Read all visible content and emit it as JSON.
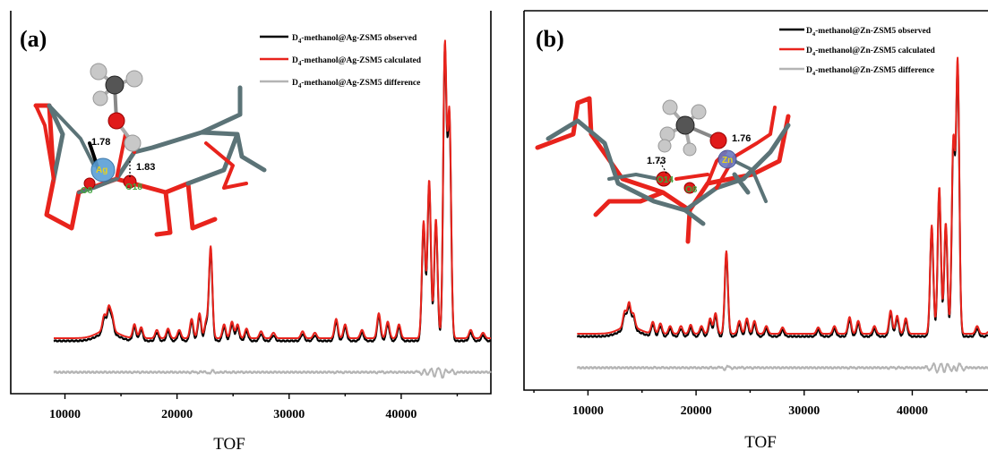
{
  "chart_data": [
    {
      "type": "line",
      "panel_label": "(a)",
      "xlabel": "TOF",
      "xlim": [
        9000,
        48000
      ],
      "xticks": [
        10000,
        20000,
        30000,
        40000
      ],
      "legend_position": "top-right",
      "series": [
        {
          "name": "D4-methanol@Ag-ZSM5 observed",
          "legend_prefix": "D",
          "legend_sub": "4",
          "legend_suffix": "-methanol@Ag-ZSM5 observed",
          "color": "#000000"
        },
        {
          "name": "D4-methanol@Ag-ZSM5 calculated",
          "legend_prefix": "D",
          "legend_sub": "4",
          "legend_suffix": "-methanol@Ag-ZSM5 calculated",
          "color": "#e8231c"
        },
        {
          "name": "D4-methanol@Ag-ZSM5 difference",
          "legend_prefix": "D",
          "legend_sub": "4",
          "legend_suffix": "-methanol@Ag-ZSM5 difference",
          "color": "#b4b4b4"
        }
      ],
      "baseline": 0.1,
      "peaks": [
        {
          "x": 13500,
          "y": 0.055
        },
        {
          "x": 13900,
          "y": 0.08
        },
        {
          "x": 14200,
          "y": 0.05
        },
        {
          "x": 16200,
          "y": 0.05
        },
        {
          "x": 16800,
          "y": 0.04
        },
        {
          "x": 18200,
          "y": 0.03
        },
        {
          "x": 19200,
          "y": 0.035
        },
        {
          "x": 20200,
          "y": 0.03
        },
        {
          "x": 21300,
          "y": 0.07
        },
        {
          "x": 22000,
          "y": 0.09
        },
        {
          "x": 22600,
          "y": 0.06
        },
        {
          "x": 23000,
          "y": 0.33
        },
        {
          "x": 24200,
          "y": 0.05
        },
        {
          "x": 24900,
          "y": 0.06
        },
        {
          "x": 25400,
          "y": 0.05
        },
        {
          "x": 26200,
          "y": 0.035
        },
        {
          "x": 27500,
          "y": 0.025
        },
        {
          "x": 28600,
          "y": 0.02
        },
        {
          "x": 31200,
          "y": 0.025
        },
        {
          "x": 32300,
          "y": 0.02
        },
        {
          "x": 34200,
          "y": 0.07
        },
        {
          "x": 35000,
          "y": 0.05
        },
        {
          "x": 36500,
          "y": 0.03
        },
        {
          "x": 38000,
          "y": 0.09
        },
        {
          "x": 38800,
          "y": 0.06
        },
        {
          "x": 39800,
          "y": 0.05
        },
        {
          "x": 42000,
          "y": 0.42
        },
        {
          "x": 42500,
          "y": 0.57
        },
        {
          "x": 43100,
          "y": 0.43
        },
        {
          "x": 43900,
          "y": 1.05
        },
        {
          "x": 44300,
          "y": 0.8
        },
        {
          "x": 46200,
          "y": 0.03
        },
        {
          "x": 47300,
          "y": 0.02
        }
      ],
      "molecule_labels": {
        "bond1": "1.78",
        "bond2": "1.83",
        "metal": "Ag",
        "site1": "O8",
        "site2": "O18"
      }
    },
    {
      "type": "line",
      "panel_label": "(b)",
      "xlabel": "TOF",
      "xlim": [
        4000,
        48000
      ],
      "xticks": [
        10000,
        20000,
        30000,
        40000
      ],
      "legend_position": "top-right",
      "series": [
        {
          "name": "D4-methanol@Zn-ZSM5 observed",
          "legend_prefix": "D",
          "legend_sub": "4",
          "legend_suffix": "-methanol@Zn-ZSM5 observed",
          "color": "#000000"
        },
        {
          "name": "D4-methanol@Zn-ZSM5 calculated",
          "legend_prefix": "D",
          "legend_sub": "4",
          "legend_suffix": "-methanol@Zn-ZSM5 calculated",
          "color": "#e8231c"
        },
        {
          "name": "D4-methanol@Zn-ZSM5 difference",
          "legend_prefix": "D",
          "legend_sub": "4",
          "legend_suffix": "-methanol@Zn-ZSM5 difference",
          "color": "#b4b4b4"
        }
      ],
      "baseline": 0.1,
      "peaks": [
        {
          "x": 13400,
          "y": 0.06
        },
        {
          "x": 13800,
          "y": 0.09
        },
        {
          "x": 14200,
          "y": 0.05
        },
        {
          "x": 16000,
          "y": 0.045
        },
        {
          "x": 16700,
          "y": 0.04
        },
        {
          "x": 17600,
          "y": 0.03
        },
        {
          "x": 18600,
          "y": 0.03
        },
        {
          "x": 19500,
          "y": 0.035
        },
        {
          "x": 20500,
          "y": 0.03
        },
        {
          "x": 21300,
          "y": 0.06
        },
        {
          "x": 21800,
          "y": 0.08
        },
        {
          "x": 22800,
          "y": 0.32
        },
        {
          "x": 24000,
          "y": 0.05
        },
        {
          "x": 24700,
          "y": 0.06
        },
        {
          "x": 25400,
          "y": 0.05
        },
        {
          "x": 26500,
          "y": 0.03
        },
        {
          "x": 28000,
          "y": 0.025
        },
        {
          "x": 31300,
          "y": 0.025
        },
        {
          "x": 32800,
          "y": 0.03
        },
        {
          "x": 34200,
          "y": 0.065
        },
        {
          "x": 35000,
          "y": 0.05
        },
        {
          "x": 36500,
          "y": 0.03
        },
        {
          "x": 38000,
          "y": 0.09
        },
        {
          "x": 38600,
          "y": 0.07
        },
        {
          "x": 39400,
          "y": 0.06
        },
        {
          "x": 41800,
          "y": 0.42
        },
        {
          "x": 42500,
          "y": 0.57
        },
        {
          "x": 43100,
          "y": 0.43
        },
        {
          "x": 43800,
          "y": 0.74
        },
        {
          "x": 44200,
          "y": 1.05
        },
        {
          "x": 46000,
          "y": 0.03
        },
        {
          "x": 47200,
          "y": 0.02
        }
      ],
      "molecule_labels": {
        "bond1": "1.73",
        "bond2": "1.76",
        "metal": "Zn",
        "site1": "O14",
        "site2": "O8"
      }
    }
  ]
}
